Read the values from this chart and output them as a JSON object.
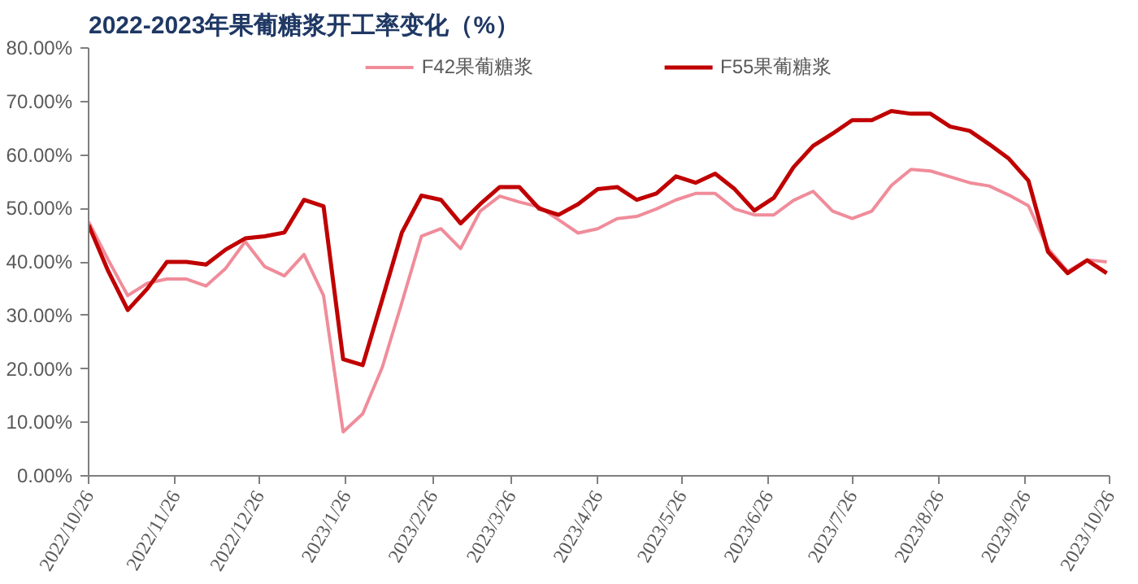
{
  "chart_data": {
    "type": "line",
    "title": "2022-2023年果葡糖浆开工率变化（%）",
    "x": [
      "2022-10-26",
      "2022-11-02",
      "2022-11-09",
      "2022-11-16",
      "2022-11-23",
      "2022-11-30",
      "2022-12-07",
      "2022-12-14",
      "2022-12-21",
      "2022-12-28",
      "2023-01-04",
      "2023-01-11",
      "2023-01-18",
      "2023-01-25",
      "2023-02-01",
      "2023-02-08",
      "2023-02-15",
      "2023-02-22",
      "2023-03-01",
      "2023-03-08",
      "2023-03-15",
      "2023-03-22",
      "2023-03-29",
      "2023-04-05",
      "2023-04-12",
      "2023-04-19",
      "2023-04-26",
      "2023-05-03",
      "2023-05-10",
      "2023-05-17",
      "2023-05-24",
      "2023-05-31",
      "2023-06-07",
      "2023-06-14",
      "2023-06-21",
      "2023-06-28",
      "2023-07-05",
      "2023-07-12",
      "2023-07-19",
      "2023-07-26",
      "2023-08-02",
      "2023-08-09",
      "2023-08-16",
      "2023-08-23",
      "2023-08-30",
      "2023-09-06",
      "2023-09-13",
      "2023-09-20",
      "2023-09-27",
      "2023-10-04",
      "2023-10-11",
      "2023-10-18",
      "2023-10-25"
    ],
    "series": [
      {
        "name": "F42果葡糖浆",
        "color": "#f08c9a",
        "values": [
          47.5,
          40.4,
          33.7,
          36,
          36.8,
          36.8,
          35.5,
          38.8,
          43.8,
          39.1,
          37.4,
          41.4,
          33.7,
          8.2,
          11.6,
          20.3,
          32.4,
          44.8,
          46.2,
          42.5,
          49.5,
          52.3,
          51.2,
          50.3,
          47.9,
          45.4,
          46.2,
          48.1,
          48.5,
          49.9,
          51.6,
          52.8,
          52.8,
          49.9,
          48.8,
          48.8,
          51.5,
          53.2,
          49.5,
          48.1,
          49.5,
          54.3,
          57.3,
          57,
          55.9,
          54.8,
          54.2,
          52.5,
          50.5,
          42.5,
          38.2,
          40.4,
          40
        ]
      },
      {
        "name": "F55果葡糖浆",
        "color": "#c00000",
        "values": [
          46.9,
          38.3,
          31,
          35,
          40,
          40,
          39.5,
          42.3,
          44.4,
          44.8,
          45.5,
          51.6,
          50.4,
          21.8,
          20.7,
          33,
          45.5,
          52.4,
          51.6,
          47.2,
          50.8,
          54,
          54,
          50,
          48.8,
          50.8,
          53.6,
          54,
          51.6,
          52.8,
          56,
          54.8,
          56.5,
          53.6,
          49.6,
          52,
          57.7,
          61.7,
          64,
          66.5,
          66.5,
          68.2,
          67.7,
          67.7,
          65.3,
          64.5,
          62,
          59.3,
          55.2,
          41.9,
          37.9,
          40.3,
          37.9
        ]
      }
    ],
    "ylim": [
      0,
      80
    ],
    "yticks": [
      {
        "value": 0,
        "label": "0.00%"
      },
      {
        "value": 10,
        "label": "10.00%"
      },
      {
        "value": 20,
        "label": "20.00%"
      },
      {
        "value": 30,
        "label": "30.00%"
      },
      {
        "value": 40,
        "label": "40.00%"
      },
      {
        "value": 50,
        "label": "50.00%"
      },
      {
        "value": 60,
        "label": "60.00%"
      },
      {
        "value": 70,
        "label": "70.00%"
      },
      {
        "value": 80,
        "label": "80.00%"
      }
    ],
    "xlim": [
      "2022-10-26",
      "2023-10-26"
    ],
    "xticks": [
      {
        "value": "2022-10-26",
        "label": "2022/10/26"
      },
      {
        "value": "2022-11-26",
        "label": "2022/11/26"
      },
      {
        "value": "2022-12-26",
        "label": "2022/12/26"
      },
      {
        "value": "2023-01-26",
        "label": "2023/1/26"
      },
      {
        "value": "2023-02-26",
        "label": "2023/2/26"
      },
      {
        "value": "2023-03-26",
        "label": "2023/3/26"
      },
      {
        "value": "2023-04-26",
        "label": "2023/4/26"
      },
      {
        "value": "2023-05-26",
        "label": "2023/5/26"
      },
      {
        "value": "2023-06-26",
        "label": "2023/6/26"
      },
      {
        "value": "2023-07-26",
        "label": "2023/7/26"
      },
      {
        "value": "2023-08-26",
        "label": "2023/8/26"
      },
      {
        "value": "2023-09-26",
        "label": "2023/9/26"
      },
      {
        "value": "2023-10-26",
        "label": "2023/10/26"
      }
    ],
    "grid": false,
    "legend": "top",
    "marker": "none",
    "line_style": "solid"
  }
}
